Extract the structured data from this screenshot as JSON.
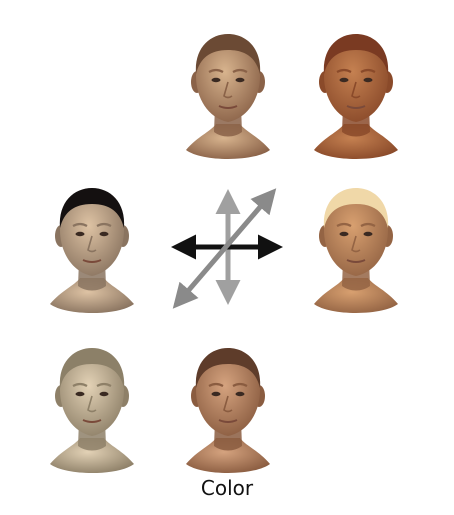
{
  "caption": "Color",
  "faces": [
    {
      "id": "top-middle",
      "skin": "#d8b48e",
      "hair": "#6b4a34",
      "shade": "#8a6248"
    },
    {
      "id": "top-right",
      "skin": "#c58151",
      "hair": "#7a3a22",
      "shade": "#8a4a2a"
    },
    {
      "id": "middle-left",
      "skin": "#dec3a4",
      "hair": "#141010",
      "shade": "#8a7460"
    },
    {
      "id": "middle-right",
      "skin": "#d8a070",
      "hair": "#f0d8a8",
      "shade": "#946444"
    },
    {
      "id": "bottom-left",
      "skin": "#e3d2b6",
      "hair": "#8c8068",
      "shade": "#8e8068"
    },
    {
      "id": "bottom-middle",
      "skin": "#d5a37f",
      "hair": "#5e3c2a",
      "shade": "#8a5c40"
    }
  ],
  "arrows": {
    "horizontal_color": "#111111",
    "oblique_color": "#8a8a8a",
    "vertical_color": "#a0a0a0",
    "diagonal_color": "#8a8a8a"
  }
}
